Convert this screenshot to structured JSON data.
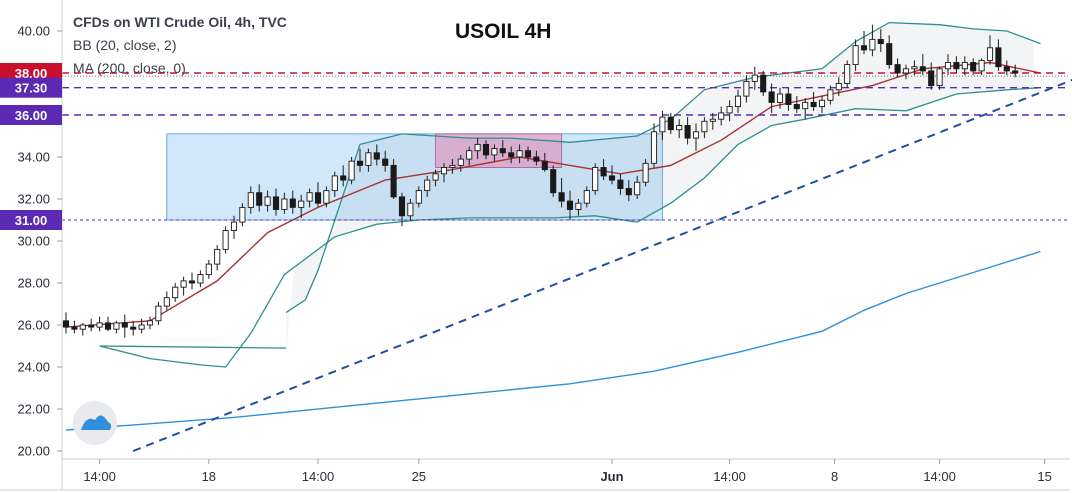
{
  "chart_data": {
    "type": "candlestick",
    "title": "USOIL 4H",
    "legend": [
      "CFDs on WTI Crude Oil, 4h, TVC",
      "BB (20, close, 2)",
      "MA (200, close, 0)"
    ],
    "y_ticks": [
      "20.00",
      "22.00",
      "24.00",
      "26.00",
      "28.00",
      "30.00",
      "32.00",
      "34.00",
      "36.00",
      "38.00",
      "40.00"
    ],
    "ylim": [
      20,
      41
    ],
    "x_ticks": [
      "14:00",
      "18",
      "14:00",
      "25",
      "Jun",
      "14:00",
      "8",
      "14:00",
      "15"
    ],
    "levels": [
      {
        "label": "38.00",
        "value": 38.0,
        "color": "#c8102e",
        "style": "dashed"
      },
      {
        "label": "37.30",
        "value": 37.3,
        "color": "#5b2ab5",
        "style": "dashed"
      },
      {
        "label": "36.00",
        "value": 36.0,
        "color": "#5b2ab5",
        "style": "dashed"
      },
      {
        "label": "31.00",
        "value": 31.0,
        "color": "#5b2ab5",
        "style": "dotted"
      }
    ],
    "candles": [
      [
        26.2,
        26.6,
        25.6,
        25.9
      ],
      [
        25.9,
        26.2,
        25.6,
        25.8
      ],
      [
        25.8,
        26.1,
        25.5,
        26.0
      ],
      [
        26.0,
        26.3,
        25.7,
        25.9
      ],
      [
        25.9,
        26.4,
        25.7,
        26.1
      ],
      [
        26.1,
        26.4,
        25.7,
        25.8
      ],
      [
        25.8,
        26.2,
        25.6,
        26.1
      ],
      [
        26.1,
        26.5,
        25.4,
        25.9
      ],
      [
        25.9,
        26.2,
        25.5,
        25.8
      ],
      [
        25.8,
        26.3,
        25.6,
        26.0
      ],
      [
        26.0,
        26.4,
        25.8,
        26.2
      ],
      [
        26.2,
        27.1,
        26.0,
        26.9
      ],
      [
        26.9,
        27.6,
        26.7,
        27.3
      ],
      [
        27.3,
        28.0,
        27.1,
        27.8
      ],
      [
        27.8,
        28.3,
        27.4,
        28.1
      ],
      [
        28.1,
        28.5,
        27.7,
        28.0
      ],
      [
        28.0,
        28.6,
        27.8,
        28.4
      ],
      [
        28.4,
        29.1,
        28.2,
        28.9
      ],
      [
        28.9,
        29.8,
        28.6,
        29.6
      ],
      [
        29.6,
        30.7,
        29.4,
        30.5
      ],
      [
        30.5,
        31.2,
        30.1,
        30.9
      ],
      [
        30.9,
        31.8,
        30.7,
        31.6
      ],
      [
        31.6,
        32.6,
        31.3,
        32.3
      ],
      [
        32.3,
        32.7,
        31.4,
        31.7
      ],
      [
        31.7,
        32.4,
        31.4,
        32.1
      ],
      [
        32.1,
        32.5,
        31.2,
        31.5
      ],
      [
        31.5,
        32.3,
        31.3,
        32.0
      ],
      [
        32.0,
        32.4,
        31.3,
        31.6
      ],
      [
        31.6,
        32.2,
        31.1,
        31.9
      ],
      [
        31.9,
        32.5,
        31.6,
        32.3
      ],
      [
        32.3,
        32.8,
        31.6,
        31.8
      ],
      [
        31.8,
        32.6,
        31.6,
        32.4
      ],
      [
        32.4,
        33.3,
        32.1,
        33.1
      ],
      [
        33.1,
        33.6,
        32.6,
        32.9
      ],
      [
        32.9,
        34.0,
        32.7,
        33.8
      ],
      [
        33.8,
        34.4,
        33.3,
        33.6
      ],
      [
        33.6,
        34.4,
        33.3,
        34.2
      ],
      [
        34.2,
        34.6,
        33.6,
        33.9
      ],
      [
        33.9,
        34.3,
        33.3,
        33.6
      ],
      [
        33.6,
        33.9,
        32.0,
        32.1
      ],
      [
        32.1,
        32.3,
        30.7,
        31.2
      ],
      [
        31.2,
        32.0,
        31.0,
        31.8
      ],
      [
        31.8,
        32.6,
        31.6,
        32.4
      ],
      [
        32.4,
        33.1,
        32.1,
        32.9
      ],
      [
        32.9,
        33.4,
        32.6,
        33.2
      ],
      [
        33.2,
        33.7,
        32.8,
        33.5
      ],
      [
        33.5,
        33.9,
        33.2,
        33.6
      ],
      [
        33.6,
        34.1,
        33.3,
        33.9
      ],
      [
        33.9,
        34.5,
        33.6,
        34.3
      ],
      [
        34.3,
        34.9,
        33.9,
        34.6
      ],
      [
        34.6,
        34.8,
        33.9,
        34.1
      ],
      [
        34.1,
        34.6,
        33.8,
        34.4
      ],
      [
        34.4,
        34.8,
        34.0,
        34.2
      ],
      [
        34.2,
        34.5,
        33.7,
        34.0
      ],
      [
        34.0,
        34.6,
        33.7,
        34.3
      ],
      [
        34.3,
        34.5,
        33.8,
        34.0
      ],
      [
        34.0,
        34.3,
        33.6,
        33.8
      ],
      [
        33.8,
        34.2,
        33.3,
        33.4
      ],
      [
        33.4,
        33.6,
        32.1,
        32.3
      ],
      [
        32.3,
        33.0,
        31.6,
        31.9
      ],
      [
        31.9,
        32.4,
        31.0,
        31.5
      ],
      [
        31.5,
        32.0,
        31.2,
        31.8
      ],
      [
        31.8,
        32.6,
        31.6,
        32.4
      ],
      [
        32.4,
        33.7,
        32.2,
        33.5
      ],
      [
        33.5,
        33.9,
        32.9,
        33.1
      ],
      [
        33.1,
        33.6,
        32.7,
        32.9
      ],
      [
        32.9,
        33.2,
        32.2,
        32.5
      ],
      [
        32.5,
        32.9,
        31.9,
        32.2
      ],
      [
        32.2,
        33.1,
        32.0,
        32.8
      ],
      [
        32.8,
        33.9,
        32.6,
        33.7
      ],
      [
        33.7,
        35.6,
        33.5,
        35.2
      ],
      [
        35.2,
        36.2,
        34.8,
        35.9
      ],
      [
        35.9,
        36.1,
        35.1,
        35.3
      ],
      [
        35.3,
        35.8,
        34.9,
        35.5
      ],
      [
        35.5,
        35.9,
        34.6,
        34.9
      ],
      [
        34.9,
        35.6,
        34.3,
        35.2
      ],
      [
        35.2,
        35.9,
        34.9,
        35.7
      ],
      [
        35.7,
        36.1,
        35.3,
        35.8
      ],
      [
        35.8,
        36.4,
        35.5,
        36.1
      ],
      [
        36.1,
        36.7,
        35.7,
        36.4
      ],
      [
        36.4,
        37.2,
        36.1,
        36.9
      ],
      [
        36.9,
        37.9,
        36.6,
        37.6
      ],
      [
        37.6,
        38.3,
        37.2,
        37.9
      ],
      [
        37.9,
        38.1,
        36.9,
        37.1
      ],
      [
        37.1,
        37.5,
        36.1,
        36.6
      ],
      [
        36.6,
        37.3,
        36.3,
        37.0
      ],
      [
        37.0,
        37.3,
        36.2,
        36.5
      ],
      [
        36.5,
        36.9,
        36.1,
        36.3
      ],
      [
        36.3,
        36.8,
        35.8,
        36.6
      ],
      [
        36.6,
        37.1,
        36.2,
        36.4
      ],
      [
        36.4,
        36.9,
        36.1,
        36.7
      ],
      [
        36.7,
        37.4,
        36.5,
        37.2
      ],
      [
        37.2,
        37.8,
        36.9,
        37.5
      ],
      [
        37.5,
        38.6,
        37.3,
        38.4
      ],
      [
        38.4,
        39.6,
        38.1,
        39.3
      ],
      [
        39.3,
        40.0,
        38.9,
        39.1
      ],
      [
        39.1,
        40.3,
        38.8,
        39.6
      ],
      [
        39.6,
        40.1,
        39.0,
        39.4
      ],
      [
        39.4,
        39.8,
        38.2,
        38.4
      ],
      [
        38.4,
        38.7,
        37.8,
        38.0
      ],
      [
        38.0,
        38.4,
        37.7,
        38.2
      ],
      [
        38.2,
        38.6,
        37.9,
        38.3
      ],
      [
        38.3,
        38.9,
        37.9,
        38.1
      ],
      [
        38.1,
        38.5,
        37.2,
        37.4
      ],
      [
        37.4,
        38.3,
        37.2,
        38.2
      ],
      [
        38.2,
        38.9,
        37.9,
        38.5
      ],
      [
        38.5,
        38.8,
        38.0,
        38.2
      ],
      [
        38.2,
        38.8,
        37.9,
        38.5
      ],
      [
        38.5,
        38.7,
        37.9,
        38.1
      ],
      [
        38.1,
        38.7,
        37.9,
        38.6
      ],
      [
        38.6,
        39.8,
        38.4,
        39.2
      ],
      [
        39.2,
        39.6,
        38.1,
        38.3
      ],
      [
        38.3,
        38.6,
        37.9,
        38.1
      ],
      [
        38.1,
        38.4,
        37.8,
        38.0
      ]
    ],
    "bb_upper": [
      [
        26.2,
        26.6
      ],
      [
        28.5,
        27.2
      ],
      [
        30.0,
        28.6
      ],
      [
        33.0,
        32.2
      ],
      [
        35.0,
        34.6
      ],
      [
        40.0,
        35.1
      ],
      [
        48.0,
        34.9
      ],
      [
        53.0,
        34.9
      ],
      [
        60.0,
        34.7
      ],
      [
        68.0,
        35.0
      ],
      [
        72.0,
        35.8
      ],
      [
        76.0,
        37.2
      ],
      [
        82.0,
        37.8
      ],
      [
        86.0,
        38.0
      ],
      [
        90.0,
        38.2
      ],
      [
        94.0,
        39.5
      ],
      [
        98.0,
        40.4
      ],
      [
        104.0,
        40.3
      ],
      [
        108.0,
        40.1
      ],
      [
        112.0,
        40.0
      ],
      [
        116.0,
        39.4
      ]
    ],
    "bb_lower": [
      [
        26.2,
        24.9
      ],
      [
        4.0,
        25.0
      ],
      [
        10.0,
        24.4
      ],
      [
        16.0,
        24.1
      ],
      [
        19.0,
        24.0
      ],
      [
        22.0,
        25.6
      ],
      [
        26.0,
        28.4
      ],
      [
        32.0,
        30.2
      ],
      [
        37.0,
        30.8
      ],
      [
        42.0,
        31.0
      ],
      [
        48.0,
        31.1
      ],
      [
        58.0,
        31.1
      ],
      [
        63.0,
        31.2
      ],
      [
        68.0,
        30.9
      ],
      [
        72.0,
        31.8
      ],
      [
        76.0,
        33.0
      ],
      [
        80.0,
        34.6
      ],
      [
        84.0,
        35.5
      ],
      [
        88.0,
        35.8
      ],
      [
        94.0,
        36.3
      ],
      [
        100.0,
        36.2
      ],
      [
        106.0,
        37.0
      ],
      [
        112.0,
        37.2
      ],
      [
        116.0,
        37.3
      ]
    ],
    "bb_basis": [
      [
        0.0,
        25.9
      ],
      [
        10.0,
        26.2
      ],
      [
        18.0,
        28.1
      ],
      [
        24.0,
        30.4
      ],
      [
        30.0,
        31.6
      ],
      [
        38.0,
        32.9
      ],
      [
        46.0,
        33.4
      ],
      [
        54.0,
        34.0
      ],
      [
        60.0,
        33.6
      ],
      [
        66.0,
        33.2
      ],
      [
        72.0,
        33.6
      ],
      [
        78.0,
        34.8
      ],
      [
        84.0,
        36.4
      ],
      [
        90.0,
        36.9
      ],
      [
        96.0,
        37.4
      ],
      [
        102.0,
        38.2
      ],
      [
        110.0,
        38.5
      ],
      [
        116.0,
        38.0
      ]
    ],
    "ma200": [
      [
        0.0,
        21.0
      ],
      [
        20.0,
        21.6
      ],
      [
        40.0,
        22.4
      ],
      [
        60.0,
        23.2
      ],
      [
        70.0,
        23.8
      ],
      [
        80.0,
        24.7
      ],
      [
        90.0,
        25.7
      ],
      [
        95.0,
        26.7
      ],
      [
        100.0,
        27.5
      ],
      [
        108.0,
        28.5
      ],
      [
        116.0,
        29.5
      ]
    ],
    "trendline": [
      [
        8.0,
        20.0
      ],
      [
        120.0,
        37.7
      ]
    ],
    "resistance_box": {
      "x0": 12.0,
      "x1": 71.0,
      "y0": 31.0,
      "y1": 35.1
    },
    "pink_box": {
      "x0": 44.0,
      "x1": 59.0,
      "y0": 33.5,
      "y1": 35.1
    }
  }
}
